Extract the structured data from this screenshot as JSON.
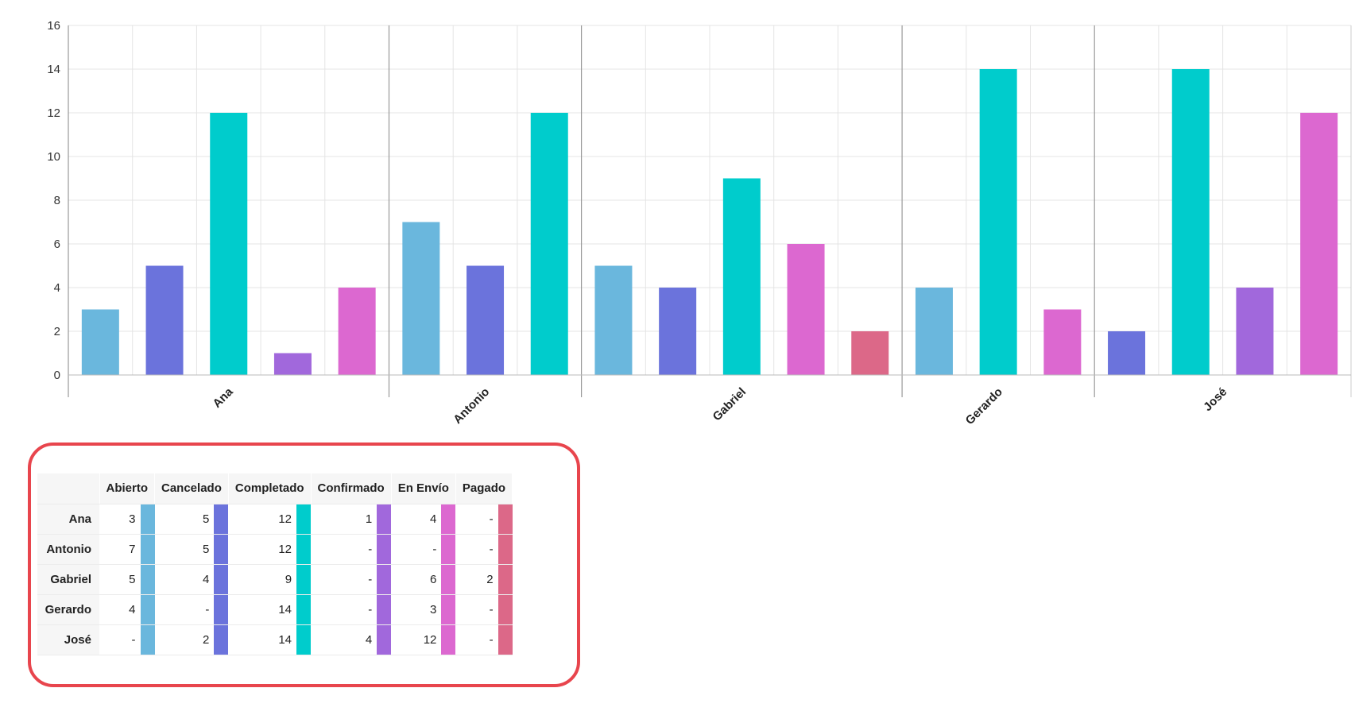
{
  "chart_data": {
    "type": "bar",
    "categories": [
      "Ana",
      "Antonio",
      "Gabriel",
      "Gerardo",
      "José"
    ],
    "series": [
      {
        "name": "Abierto",
        "color": "#6ab7dd",
        "values": [
          3,
          7,
          5,
          4,
          null
        ]
      },
      {
        "name": "Cancelado",
        "color": "#6b73dc",
        "values": [
          5,
          5,
          4,
          null,
          2
        ]
      },
      {
        "name": "Completado",
        "color": "#00cccc",
        "values": [
          12,
          12,
          9,
          14,
          14
        ]
      },
      {
        "name": "Confirmado",
        "color": "#a168dc",
        "values": [
          1,
          null,
          null,
          null,
          4
        ]
      },
      {
        "name": "En Envío",
        "color": "#dc68d0",
        "values": [
          4,
          null,
          6,
          3,
          12
        ]
      },
      {
        "name": "Pagado",
        "color": "#dc6888",
        "values": [
          null,
          null,
          2,
          null,
          null
        ]
      }
    ],
    "ylim": [
      0,
      16
    ],
    "yticks": [
      0,
      2,
      4,
      6,
      8,
      10,
      12,
      14,
      16
    ],
    "grid": true,
    "legend": "table-below"
  },
  "table": {
    "corner": "",
    "columns": [
      "Abierto",
      "Cancelado",
      "Completado",
      "Confirmado",
      "En Envío",
      "Pagado"
    ],
    "rows": [
      {
        "name": "Ana",
        "values": [
          "3",
          "5",
          "12",
          "1",
          "4",
          "-"
        ]
      },
      {
        "name": "Antonio",
        "values": [
          "7",
          "5",
          "12",
          "-",
          "-",
          "-"
        ]
      },
      {
        "name": "Gabriel",
        "values": [
          "5",
          "4",
          "9",
          "-",
          "6",
          "2"
        ]
      },
      {
        "name": "Gerardo",
        "values": [
          "4",
          "-",
          "14",
          "-",
          "3",
          "-"
        ]
      },
      {
        "name": "José",
        "values": [
          "-",
          "2",
          "14",
          "4",
          "12",
          "-"
        ]
      }
    ]
  }
}
